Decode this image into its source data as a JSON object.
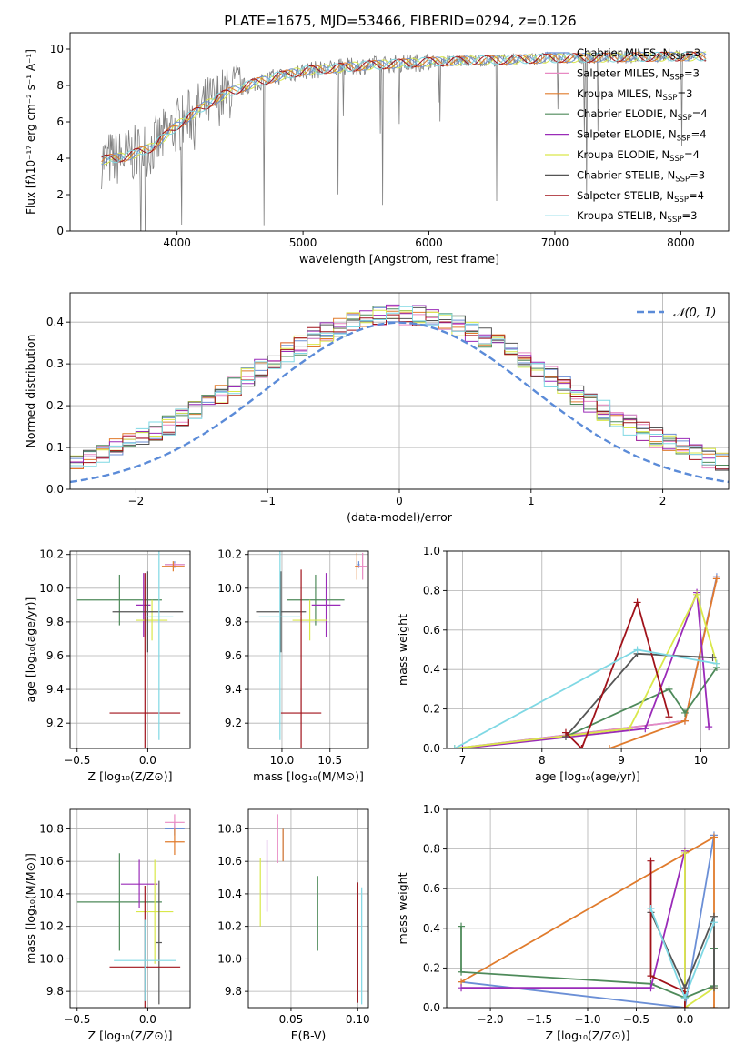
{
  "colors": {
    "chabrier_miles": "#6b8fd6",
    "salpeter_miles": "#e889c3",
    "kroupa_miles": "#e07b2c",
    "chabrier_elodie": "#4e8a5a",
    "salpeter_elodie": "#9a2bb8",
    "kroupa_elodie": "#d9e84a",
    "chabrier_stelib": "#555555",
    "salpeter_stelib": "#a0121a",
    "kroupa_stelib": "#7fd8e4",
    "data": "#808080",
    "gauss": "#5b8bd8"
  },
  "chart_data": [
    {
      "id": "spectrum",
      "type": "line",
      "title": "PLATE=1675, MJD=53466, FIBERID=0294, z=0.126",
      "xlabel": "wavelength [Angstrom, rest frame]",
      "ylabel": "Flux [fλ10⁻¹⁷ erg cm⁻² s⁻¹ A⁻¹]",
      "xlim": [
        3150,
        8380
      ],
      "ylim": [
        0,
        10.9
      ],
      "xticks": [
        "4000",
        "5000",
        "6000",
        "7000",
        "8000"
      ],
      "yticks": [
        "0",
        "2",
        "4",
        "6",
        "8",
        "10"
      ],
      "continuum": {
        "x": [
          3400,
          3600,
          3800,
          4000,
          4200,
          4400,
          4600,
          4800,
          5000,
          5500,
          6000,
          6500,
          7000,
          7500,
          8000,
          8200
        ],
        "y": [
          3.9,
          4.1,
          4.6,
          5.8,
          6.8,
          7.6,
          8.1,
          8.5,
          8.8,
          9.1,
          9.3,
          9.4,
          9.5,
          9.55,
          9.6,
          9.6
        ]
      },
      "legend": [
        {
          "name": "Chabrier MILES, N",
          "sub": "SSP",
          "tail": "=3",
          "color_key": "chabrier_miles"
        },
        {
          "name": "Salpeter MILES, N",
          "sub": "SSP",
          "tail": "=3",
          "color_key": "salpeter_miles"
        },
        {
          "name": "Kroupa MILES, N",
          "sub": "SSP",
          "tail": "=3",
          "color_key": "kroupa_miles"
        },
        {
          "name": "Chabrier ELODIE, N",
          "sub": "SSP",
          "tail": "=4",
          "color_key": "chabrier_elodie"
        },
        {
          "name": "Salpeter ELODIE, N",
          "sub": "SSP",
          "tail": "=4",
          "color_key": "salpeter_elodie"
        },
        {
          "name": "Kroupa ELODIE, N",
          "sub": "SSP",
          "tail": "=4",
          "color_key": "kroupa_elodie"
        },
        {
          "name": "Chabrier STELIB, N",
          "sub": "SSP",
          "tail": "=3",
          "color_key": "chabrier_stelib"
        },
        {
          "name": "Salpeter STELIB, N",
          "sub": "SSP",
          "tail": "=4",
          "color_key": "salpeter_stelib"
        },
        {
          "name": "Kroupa STELIB, N",
          "sub": "SSP",
          "tail": "=3",
          "color_key": "kroupa_stelib"
        }
      ]
    },
    {
      "id": "residuals",
      "type": "line",
      "xlabel": "(data-model)/error",
      "ylabel": "Normed distribution",
      "xlim": [
        -2.5,
        2.5
      ],
      "ylim": [
        0,
        0.47
      ],
      "xticks": [
        "−2",
        "−1",
        "0",
        "1",
        "2"
      ],
      "yticks": [
        "0.0",
        "0.1",
        "0.2",
        "0.3",
        "0.4"
      ],
      "legend_label": "𝒩(0, 1)",
      "bin_width": 0.1,
      "n_bins": 50
    },
    {
      "id": "age_vs_z",
      "type": "scatter",
      "xlabel": "Z [log₁₀(Z/Z⊙)]",
      "ylabel": "age  [log₁₀(age/yr)]",
      "xlim": [
        -0.55,
        0.3
      ],
      "ylim": [
        9.05,
        10.22
      ],
      "xticks": [
        "−0.5",
        "0.0"
      ],
      "yticks": [
        "9.2",
        "9.4",
        "9.6",
        "9.8",
        "10.0",
        "10.2"
      ],
      "points": [
        {
          "key": "chabrier_miles",
          "x": 0.19,
          "xerr": 0.07,
          "y": 10.14,
          "yerr": 0.02
        },
        {
          "key": "salpeter_miles",
          "x": 0.19,
          "xerr": 0.07,
          "y": 10.14,
          "yerr": 0.01
        },
        {
          "key": "kroupa_miles",
          "x": 0.18,
          "xerr": 0.08,
          "y": 10.13,
          "yerr": 0.03
        },
        {
          "key": "chabrier_elodie",
          "x": -0.2,
          "xerr": 0.3,
          "y": 9.93,
          "yerr": 0.15
        },
        {
          "key": "salpeter_elodie",
          "x": -0.03,
          "xerr": 0.05,
          "y": 9.9,
          "yerr": 0.19
        },
        {
          "key": "kroupa_elodie",
          "x": 0.03,
          "xerr": 0.11,
          "y": 9.81,
          "yerr": 0.12
        },
        {
          "key": "chabrier_stelib",
          "x": 0.0,
          "xerr": 0.25,
          "y": 9.86,
          "yerr": 0.24
        },
        {
          "key": "salpeter_stelib",
          "x": -0.02,
          "xerr": 0.25,
          "y": 9.26,
          "yerr": 0.83
        },
        {
          "key": "kroupa_stelib",
          "x": 0.08,
          "xerr": 0.1,
          "y": 9.83,
          "yerr": 0.73
        }
      ]
    },
    {
      "id": "age_vs_mass",
      "type": "scatter",
      "xlabel": "mass [log₁₀(M/M⊙)]",
      "ylabel": "",
      "xlim": [
        9.65,
        10.9
      ],
      "ylim": [
        9.05,
        10.22
      ],
      "xticks": [
        "10.0",
        "10.5"
      ],
      "yticks": [
        "9.2",
        "9.4",
        "9.6",
        "9.8",
        "10.0",
        "10.2"
      ],
      "points": [
        {
          "key": "chabrier_miles",
          "x": 10.8,
          "xerr": 0.01,
          "y": 10.14,
          "yerr": 0.02
        },
        {
          "key": "salpeter_miles",
          "x": 10.84,
          "xerr": 0.05,
          "y": 10.13,
          "yerr": 0.08
        },
        {
          "key": "kroupa_miles",
          "x": 10.78,
          "xerr": 0.02,
          "y": 10.13,
          "yerr": 0.08
        },
        {
          "key": "chabrier_elodie",
          "x": 10.35,
          "xerr": 0.3,
          "y": 9.93,
          "yerr": 0.15
        },
        {
          "key": "salpeter_elodie",
          "x": 10.46,
          "xerr": 0.15,
          "y": 9.9,
          "yerr": 0.19
        },
        {
          "key": "kroupa_elodie",
          "x": 10.29,
          "xerr": 0.18,
          "y": 9.81,
          "yerr": 0.12
        },
        {
          "key": "chabrier_stelib",
          "x": 9.99,
          "xerr": 0.26,
          "y": 9.86,
          "yerr": 0.24
        },
        {
          "key": "salpeter_stelib",
          "x": 10.2,
          "xerr": 0.21,
          "y": 9.26,
          "yerr": 0.85
        },
        {
          "key": "kroupa_stelib",
          "x": 9.98,
          "xerr": 0.22,
          "y": 9.83,
          "yerr": 0.73
        }
      ]
    },
    {
      "id": "weight_vs_age",
      "type": "line",
      "xlabel": "age  [log₁₀(age/yr)]",
      "ylabel": "mass weight",
      "xlim": [
        6.8,
        10.35
      ],
      "ylim": [
        0,
        1.0
      ],
      "xticks": [
        "7",
        "8",
        "9",
        "10"
      ],
      "yticks": [
        "0.0",
        "0.2",
        "0.4",
        "0.6",
        "0.8",
        "1.0"
      ],
      "series": [
        {
          "key": "chabrier_miles",
          "x": [
            6.9,
            9.8,
            10.2
          ],
          "y": [
            0.0,
            0.14,
            0.87
          ]
        },
        {
          "key": "salpeter_miles",
          "x": [
            6.9,
            9.8,
            10.2
          ],
          "y": [
            0.0,
            0.14,
            0.86
          ]
        },
        {
          "key": "kroupa_miles",
          "x": [
            8.85,
            9.8,
            10.2
          ],
          "y": [
            0.0,
            0.14,
            0.86
          ]
        },
        {
          "key": "chabrier_elodie",
          "x": [
            8.3,
            9.6,
            9.8,
            10.2
          ],
          "y": [
            0.06,
            0.3,
            0.18,
            0.41
          ]
        },
        {
          "key": "salpeter_elodie",
          "x": [
            7.0,
            9.3,
            9.95,
            10.1
          ],
          "y": [
            0.0,
            0.1,
            0.79,
            0.11
          ]
        },
        {
          "key": "kroupa_elodie",
          "x": [
            6.9,
            9.1,
            9.95,
            10.2
          ],
          "y": [
            0.0,
            0.1,
            0.78,
            0.43
          ]
        },
        {
          "key": "chabrier_stelib",
          "x": [
            8.3,
            9.2,
            10.15
          ],
          "y": [
            0.06,
            0.48,
            0.46
          ]
        },
        {
          "key": "salpeter_stelib",
          "x": [
            8.3,
            8.5,
            9.2,
            9.6
          ],
          "y": [
            0.08,
            0.0,
            0.74,
            0.16
          ]
        },
        {
          "key": "kroupa_stelib",
          "x": [
            6.9,
            9.2,
            10.2
          ],
          "y": [
            0.0,
            0.5,
            0.43
          ]
        }
      ]
    },
    {
      "id": "mass_vs_z",
      "type": "scatter",
      "xlabel": "Z [log₁₀(Z/Z⊙)]",
      "ylabel": "mass [log₁₀(M/M⊙)]",
      "xlim": [
        -0.55,
        0.3
      ],
      "ylim": [
        9.7,
        10.92
      ],
      "xticks": [
        "−0.5",
        "0.0"
      ],
      "yticks": [
        "9.8",
        "10.0",
        "10.2",
        "10.4",
        "10.6",
        "10.8"
      ],
      "points": [
        {
          "key": "chabrier_miles",
          "x": 0.19,
          "xerr": 0.07,
          "y": 10.8,
          "yerr": 0.04
        },
        {
          "key": "salpeter_miles",
          "x": 0.19,
          "xerr": 0.07,
          "y": 10.84,
          "yerr": 0.05
        },
        {
          "key": "kroupa_miles",
          "x": 0.19,
          "xerr": 0.07,
          "y": 10.72,
          "yerr": 0.08
        },
        {
          "key": "chabrier_elodie",
          "x": -0.2,
          "xerr": 0.3,
          "y": 10.35,
          "yerr": 0.3
        },
        {
          "key": "salpeter_elodie",
          "x": -0.06,
          "xerr": 0.13,
          "y": 10.46,
          "yerr": 0.15
        },
        {
          "key": "kroupa_elodie",
          "x": 0.05,
          "xerr": 0.13,
          "y": 10.29,
          "yerr": 0.32
        },
        {
          "key": "chabrier_stelib",
          "x": 0.08,
          "xerr": 0.02,
          "y": 10.1,
          "yerr": 0.38
        },
        {
          "key": "salpeter_stelib",
          "x": -0.02,
          "xerr": 0.25,
          "y": 9.95,
          "yerr": 0.5
        },
        {
          "key": "kroupa_stelib",
          "x": -0.02,
          "xerr": 0.22,
          "y": 9.99,
          "yerr": 0.25
        }
      ]
    },
    {
      "id": "mass_vs_ebv",
      "type": "scatter",
      "xlabel": "E(B-V)",
      "ylabel": "",
      "xlim": [
        0.018,
        0.108
      ],
      "ylim": [
        9.7,
        10.92
      ],
      "xticks": [
        "0.05",
        "0.10"
      ],
      "yticks": [
        "9.8",
        "10.0",
        "10.2",
        "10.4",
        "10.6",
        "10.8"
      ],
      "points": [
        {
          "key": "chabrier_miles",
          "x": 0.044,
          "y": 10.7,
          "yerr": 0.1
        },
        {
          "key": "salpeter_miles",
          "x": 0.04,
          "y": 10.74,
          "yerr": 0.15
        },
        {
          "key": "kroupa_miles",
          "x": 0.044,
          "y": 10.7,
          "yerr": 0.1
        },
        {
          "key": "chabrier_elodie",
          "x": 0.07,
          "y": 10.28,
          "yerr": 0.23
        },
        {
          "key": "salpeter_elodie",
          "x": 0.032,
          "y": 10.51,
          "yerr": 0.22
        },
        {
          "key": "kroupa_elodie",
          "x": 0.027,
          "y": 10.41,
          "yerr": 0.21
        },
        {
          "key": "chabrier_stelib",
          "x": 0.1,
          "y": 10.1,
          "yerr": 0.37
        },
        {
          "key": "salpeter_stelib",
          "x": 0.1,
          "y": 10.1,
          "yerr": 0.37
        },
        {
          "key": "kroupa_stelib",
          "x": 0.103,
          "y": 10.08,
          "yerr": 0.36
        }
      ]
    },
    {
      "id": "weight_vs_z",
      "type": "line",
      "xlabel": "Z [log₁₀(Z/Z⊙)]",
      "ylabel": "mass weight",
      "xlim": [
        -2.45,
        0.45
      ],
      "ylim": [
        0,
        1.0
      ],
      "xticks": [
        "−2.0",
        "−1.5",
        "−1.0",
        "−0.5",
        "0.0"
      ],
      "yticks": [
        "0.0",
        "0.2",
        "0.4",
        "0.6",
        "0.8",
        "1.0"
      ],
      "series": [
        {
          "key": "chabrier_miles",
          "x": [
            -2.3,
            0.0,
            0.3
          ],
          "y": [
            0.13,
            0.0,
            0.87
          ]
        },
        {
          "key": "kroupa_miles",
          "x": [
            -2.3,
            0.3,
            0.3
          ],
          "y": [
            0.13,
            0.86,
            0.0
          ]
        },
        {
          "key": "chabrier_elodie",
          "x": [
            -2.3,
            -2.3,
            -0.35,
            0.0,
            0.3,
            0.3
          ],
          "y": [
            0.41,
            0.18,
            0.12,
            0.05,
            0.11,
            0.3
          ]
        },
        {
          "key": "salpeter_elodie",
          "x": [
            -2.3,
            -0.35,
            0.0,
            0.0
          ],
          "y": [
            0.1,
            0.1,
            0.79,
            0.1
          ]
        },
        {
          "key": "kroupa_elodie",
          "x": [
            0.0,
            0.0,
            0.3
          ],
          "y": [
            0.78,
            0.0,
            0.1
          ]
        },
        {
          "key": "chabrier_stelib",
          "x": [
            -0.35,
            0.0,
            0.3,
            0.3
          ],
          "y": [
            0.48,
            0.1,
            0.46,
            0.1
          ]
        },
        {
          "key": "salpeter_stelib",
          "x": [
            -0.35,
            -0.35,
            0.0,
            0.0
          ],
          "y": [
            0.74,
            0.16,
            0.08,
            0.0
          ]
        },
        {
          "key": "kroupa_stelib",
          "x": [
            -0.35,
            0.0,
            0.3
          ],
          "y": [
            0.5,
            0.05,
            0.43
          ]
        }
      ]
    }
  ]
}
